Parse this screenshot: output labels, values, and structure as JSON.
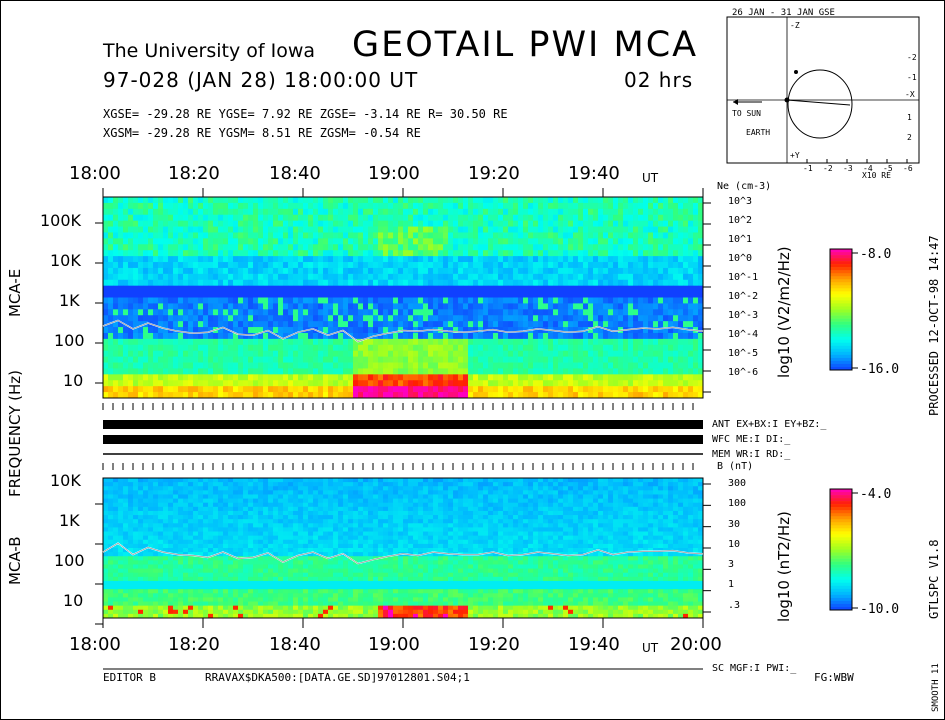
{
  "header": {
    "institution": "The University of Iowa",
    "instrument": "GEOTAIL PWI MCA",
    "date_line": "97-028 (JAN 28) 18:00:00 UT",
    "duration": "02 hrs",
    "gse_line": "XGSE= -29.28 RE  YGSE=   7.92 RE  ZGSE=  -3.14 RE  R= 30.50 RE",
    "gsm_line": "XGSM= -29.28 RE  YGSM=   8.51 RE  ZGSM=  -0.54 RE"
  },
  "orbit": {
    "title": "26 JAN - 31 JAN  GSE",
    "to_sun": "TO SUN",
    "earth": "EARTH",
    "x_label": "X10 RE",
    "x_axis_label": "-X",
    "y_axis_label": "-Z",
    "x_ticks": [
      "-1",
      "-2",
      "-3",
      "-4",
      "-5",
      "-6"
    ],
    "y_ticks": [
      "-2",
      "-1",
      "1",
      "2"
    ],
    "bottom_axis_label": "+Y"
  },
  "time_axis": {
    "ticks_top": [
      "18:00",
      "18:20",
      "18:40",
      "19:00",
      "19:20",
      "19:40"
    ],
    "ticks_bottom": [
      "18:00",
      "18:20",
      "18:40",
      "19:00",
      "19:20",
      "19:40"
    ],
    "end_tick": "20:00",
    "unit": "UT"
  },
  "labels": {
    "frequency": "FREQUENCY (Hz)",
    "mca_e": "MCA-E",
    "mca_b": "MCA-B",
    "processed": "PROCESSED 12-OCT-98  14:47",
    "version": "GTLSPC  V1.8",
    "smooth": "SMOOTH 11"
  },
  "status": {
    "ant": "ANT EX+BX:I  EY+BZ:_",
    "wfc": "WFC ME:I    DI:_",
    "mem": "MEM WR:I    RD:_",
    "sc": "SC MGF:I   PWI:_"
  },
  "footer": {
    "editor": "EDITOR B",
    "file": "RRAVAX$DKA500:[DATA.GE.SD]97012801.S04;1",
    "fg": "FG:WBW"
  },
  "colors": {
    "spectrum": [
      "#1040ff",
      "#00b4ff",
      "#00ffee",
      "#30ff80",
      "#a0ff20",
      "#ffff00",
      "#ffa000",
      "#ff2000",
      "#ff00c0"
    ]
  },
  "chart_data": [
    {
      "type": "heatmap",
      "name": "MCA-E",
      "title": "MCA-E",
      "xlabel": "UT",
      "ylabel": "FREQUENCY (Hz)",
      "x_range": [
        "18:00",
        "20:00"
      ],
      "ylim": [
        5.6,
        311000
      ],
      "y_scale": "log",
      "y_ticks": [
        "100K",
        "10K",
        "1K",
        "100",
        "10"
      ],
      "right_axis_label": "Ne (cm-3)",
      "right_axis_ticks": [
        "10^3",
        "10^2",
        "10^1",
        "10^0",
        "10^-1",
        "10^-2",
        "10^-3",
        "10^-4",
        "10^-5",
        "10^-6"
      ],
      "colorbar": {
        "label": "log10 (V2/m2/Hz)",
        "max_label": "-8.0",
        "min_label": "-16.0",
        "range": [
          -16.0,
          -8.0
        ]
      },
      "overlay_line": {
        "name": "plasma frequency trace",
        "t_min": [
          0,
          3,
          6,
          9,
          12,
          15,
          18,
          21,
          24,
          27,
          30,
          33,
          36,
          39,
          42,
          45,
          48,
          51,
          54,
          57,
          60,
          63,
          66,
          69,
          72,
          75,
          78,
          81,
          84,
          87,
          90,
          93,
          96,
          99,
          102,
          105,
          108,
          111,
          114,
          117,
          120
        ],
        "freq_hz": [
          280,
          380,
          240,
          330,
          250,
          210,
          190,
          200,
          260,
          180,
          170,
          220,
          140,
          200,
          240,
          170,
          220,
          120,
          160,
          190,
          220,
          210,
          230,
          210,
          200,
          210,
          230,
          200,
          210,
          240,
          220,
          200,
          210,
          270,
          210,
          230,
          250,
          240,
          260,
          230,
          210
        ]
      }
    },
    {
      "type": "heatmap",
      "name": "MCA-B",
      "title": "MCA-B",
      "xlabel": "UT",
      "ylabel": "FREQUENCY (Hz)",
      "x_range": [
        "18:00",
        "20:00"
      ],
      "ylim": [
        5.6,
        15000
      ],
      "y_scale": "log",
      "y_ticks": [
        "10K",
        "1K",
        "100",
        "10"
      ],
      "right_axis_label": "B (nT)",
      "right_axis_ticks": [
        "300",
        "100",
        "30",
        "10",
        "3",
        "1",
        ".3"
      ],
      "colorbar": {
        "label": "log10 (nT2/Hz)",
        "max_label": "-4.0",
        "min_label": "-10.0",
        "range": [
          -10.0,
          -4.0
        ]
      },
      "overlay_line": {
        "name": "electron cyclotron trace",
        "t_min": [
          0,
          3,
          6,
          9,
          12,
          15,
          18,
          21,
          24,
          27,
          30,
          33,
          36,
          39,
          42,
          45,
          48,
          51,
          54,
          57,
          60,
          63,
          66,
          69,
          72,
          75,
          78,
          81,
          84,
          87,
          90,
          93,
          96,
          99,
          102,
          105,
          108,
          111,
          114,
          117,
          120
        ],
        "freq_hz": [
          230,
          380,
          200,
          300,
          230,
          200,
          190,
          170,
          230,
          160,
          170,
          220,
          130,
          190,
          230,
          160,
          210,
          120,
          150,
          180,
          210,
          190,
          230,
          210,
          200,
          200,
          230,
          190,
          200,
          230,
          210,
          190,
          200,
          260,
          200,
          230,
          240,
          240,
          250,
          220,
          210
        ]
      }
    }
  ]
}
